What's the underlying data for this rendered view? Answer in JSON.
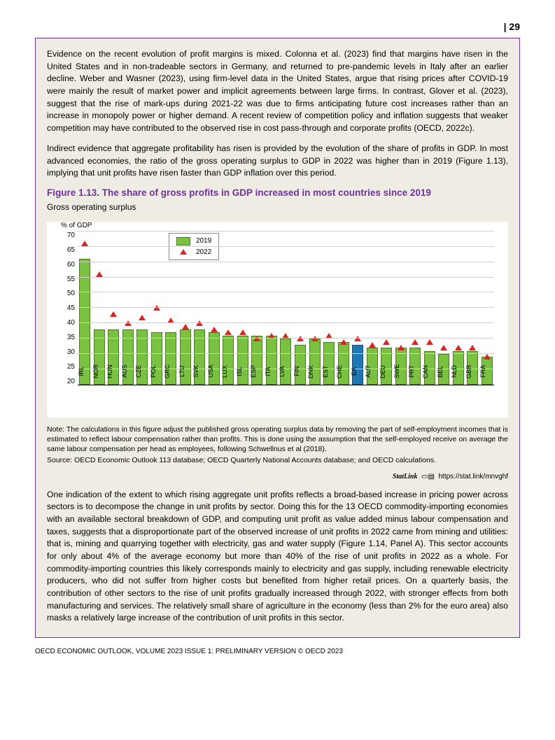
{
  "page_number": "| 29",
  "para1": "Evidence on the recent evolution of profit margins is mixed. Colonna et al. (2023) find that margins have risen in the United States and in non-tradeable sectors in Germany, and returned to pre-pandemic levels in Italy after an earlier decline. Weber and Wasner (2023), using firm-level data in the United States, argue that rising prices after COVID-19 were mainly the result of market power and implicit agreements between large firms. In contrast, Glover et al. (2023), suggest that the rise of mark-ups during 2021-22 was due to firms anticipating future cost increases rather than an increase in monopoly power or higher demand. A recent review of competition policy and inflation suggests that weaker competition may have contributed to the observed rise in cost pass-through and corporate profits (OECD, 2022c).",
  "para2": "Indirect evidence that aggregate profitability has risen is provided by the evolution of the share of profits in GDP. In most advanced economies, the ratio of the gross operating surplus to GDP in 2022 was higher than in 2019 (Figure 1.13), implying that unit profits have risen faster than GDP inflation over this period.",
  "figure_title": "Figure 1.13. The share of gross profits in GDP increased in most countries since 2019",
  "figure_subtitle": "Gross operating surplus",
  "chart": {
    "type": "bar_with_markers",
    "y_label": "% of GDP",
    "y_min": 20,
    "y_max": 70,
    "y_step": 5,
    "y_ticks": [
      70,
      65,
      60,
      55,
      50,
      45,
      40,
      35,
      30,
      25,
      20
    ],
    "bar_color": "#7ac142",
    "bar_border": "#4a7a1f",
    "highlight_country": "EA",
    "highlight_color": "#1f77b4",
    "marker_color": "#d62728",
    "grid_color": "#d0d0d0",
    "legend": {
      "bar_label": "2019",
      "marker_label": "2022"
    },
    "countries": [
      "IRL",
      "NOR",
      "HUN",
      "AUS",
      "CZE",
      "POL",
      "GRC",
      "LTU",
      "SVK",
      "USA",
      "LUX",
      "ISL",
      "ESP",
      "ITA",
      "LVA",
      "FIN",
      "DNK",
      "EST",
      "CHE",
      "EA",
      "AUT",
      "DEU",
      "SWE",
      "PRT",
      "CAN",
      "BEL",
      "NLD",
      "GBR",
      "FRA"
    ],
    "values_2019": [
      61,
      38,
      38,
      38,
      38,
      37,
      37,
      38,
      38,
      37,
      36,
      36,
      36,
      36,
      35,
      33,
      35,
      34,
      34,
      33,
      32,
      32,
      32,
      32,
      31,
      30,
      31,
      31,
      29
    ],
    "values_2022": [
      66,
      56,
      43,
      40,
      42,
      45,
      41,
      39,
      40,
      38,
      37,
      37,
      35,
      36,
      36,
      35,
      35,
      36,
      34,
      35,
      33,
      34,
      32,
      34,
      34,
      32,
      32,
      32,
      29
    ]
  },
  "note1": "Note: The calculations in this figure adjust the published gross operating surplus data by removing the part of self-employment incomes that is estimated to reflect labour compensation rather than profits. This is done using the assumption that the self-employed receive on average the same labour compensation per head as employees, following Schwellnus et al (2018).",
  "note2": "Source: OECD Economic Outlook 113 database; OECD Quarterly National Accounts database; and OECD calculations.",
  "statlink_brand": "StatLink",
  "statlink_url": "https://stat.link/mnvghf",
  "para3": "One indication of the extent to which rising aggregate unit profits reflects a broad-based increase in pricing power across sectors is to decompose the change in unit profits by sector. Doing this for the 13 OECD commodity-importing economies with an available sectoral breakdown of GDP, and computing unit profit as value added minus labour compensation and taxes, suggests that a disproportionate part of the observed increase of unit profits in 2022 came from mining and utilities: that is, mining and quarrying together with electricity, gas and water supply (Figure 1.14, Panel A). This sector accounts for only about 4% of the average economy but more than 40% of the rise of unit profits in 2022 as a whole. For commodity-importing countries this likely corresponds mainly to electricity and gas supply, including renewable electricity producers, who did not suffer from higher costs but benefited from higher retail prices. On a quarterly basis, the contribution of other sectors to the rise of unit profits gradually increased through 2022, with stronger effects from both manufacturing and services. The relatively small share of agriculture in the economy (less than 2% for the euro area) also masks a relatively large increase of the contribution of unit profits in this sector.",
  "footer": "OECD ECONOMIC OUTLOOK, VOLUME 2023 ISSUE 1: PRELIMINARY VERSION © OECD 2023"
}
